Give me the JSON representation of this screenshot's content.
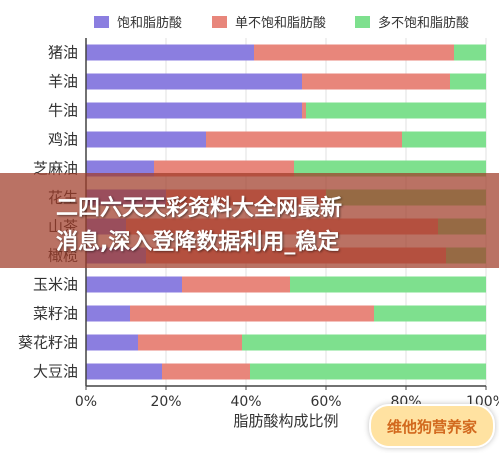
{
  "chart_data": {
    "type": "bar",
    "orientation": "horizontal",
    "stacked": true,
    "xlabel": "脂肪酸构成比例",
    "ylabel": "",
    "xlim": [
      0,
      100
    ],
    "x_ticks": [
      "0%",
      "20%",
      "40%",
      "60%",
      "80%",
      "100%"
    ],
    "grid": true,
    "legend_position": "top",
    "categories": [
      "猪油",
      "羊油",
      "牛油",
      "鸡油",
      "芝麻油",
      "花生油",
      "山茶油",
      "橄榄油",
      "玉米油",
      "菜籽油",
      "葵花籽油",
      "大豆油"
    ],
    "category_labels_visible": [
      "猪油",
      "羊油",
      "牛油",
      "鸡油",
      "芝麻油",
      "花生",
      "山茶",
      "橄榄",
      "玉米油",
      "菜籽油",
      "葵花籽油",
      "大豆油"
    ],
    "series": [
      {
        "name": "饱和脂肪酸",
        "color": "#8b7ee0",
        "values": [
          42,
          54,
          54,
          30,
          17,
          20,
          10,
          15,
          24,
          11,
          13,
          19
        ]
      },
      {
        "name": "单不饱和脂肪酸",
        "color": "#e8867b",
        "values": [
          50,
          37,
          1,
          49,
          35,
          40,
          78,
          75,
          27,
          61,
          26,
          22
        ]
      },
      {
        "name": "多不饱和脂肪酸",
        "color": "#7ee08e",
        "values": [
          8,
          9,
          45,
          21,
          48,
          40,
          12,
          10,
          49,
          28,
          61,
          59
        ]
      }
    ]
  },
  "banner": {
    "line1": "二四六天天彩资料大全网最新",
    "line2": "消息,深入登降数据利用_稳定"
  },
  "badge": {
    "text": "维他狗营养家"
  }
}
